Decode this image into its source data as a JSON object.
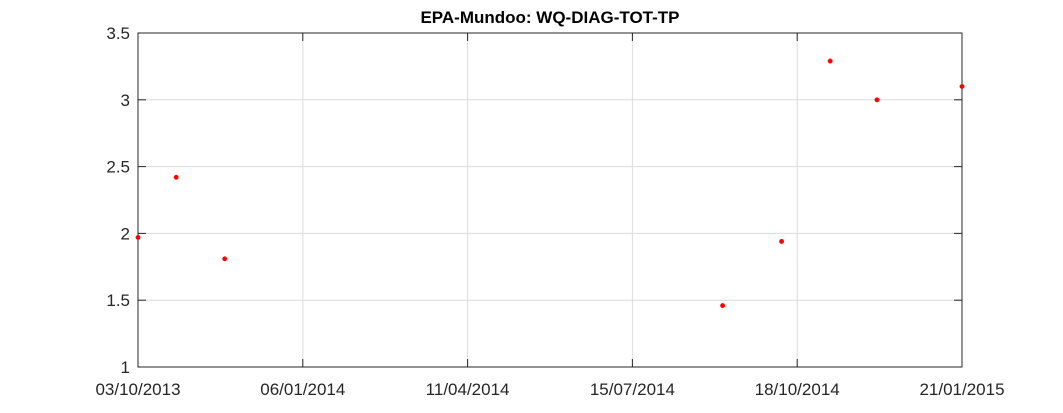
{
  "chart_data": {
    "type": "scatter",
    "title": "EPA-Mundoo: WQ-DIAG-TOT-TP",
    "xlabel": "",
    "ylabel": "",
    "x_axis_type": "date",
    "xlim": [
      "2013-10-03",
      "2015-01-21"
    ],
    "ylim": [
      1,
      3.5
    ],
    "x_ticks": [
      {
        "value": "2013-10-03",
        "label": "03/10/2013"
      },
      {
        "value": "2014-01-06",
        "label": "06/01/2014"
      },
      {
        "value": "2014-04-11",
        "label": "11/04/2014"
      },
      {
        "value": "2014-07-15",
        "label": "15/07/2014"
      },
      {
        "value": "2014-10-18",
        "label": "18/10/2014"
      },
      {
        "value": "2015-01-21",
        "label": "21/01/2015"
      }
    ],
    "y_ticks": [
      {
        "value": 1,
        "label": "1"
      },
      {
        "value": 1.5,
        "label": "1.5"
      },
      {
        "value": 2,
        "label": "2"
      },
      {
        "value": 2.5,
        "label": "2.5"
      },
      {
        "value": 3,
        "label": "3"
      },
      {
        "value": 3.5,
        "label": "3.5"
      }
    ],
    "grid": true,
    "marker_color": "#ff0000",
    "points": [
      {
        "x": "2013-10-03",
        "y": 1.97
      },
      {
        "x": "2013-10-25",
        "y": 2.42
      },
      {
        "x": "2013-11-22",
        "y": 1.81
      },
      {
        "x": "2014-09-05",
        "y": 1.46
      },
      {
        "x": "2014-10-09",
        "y": 1.94
      },
      {
        "x": "2014-11-06",
        "y": 3.29
      },
      {
        "x": "2014-12-03",
        "y": 3.0
      },
      {
        "x": "2015-01-21",
        "y": 3.1
      }
    ]
  }
}
